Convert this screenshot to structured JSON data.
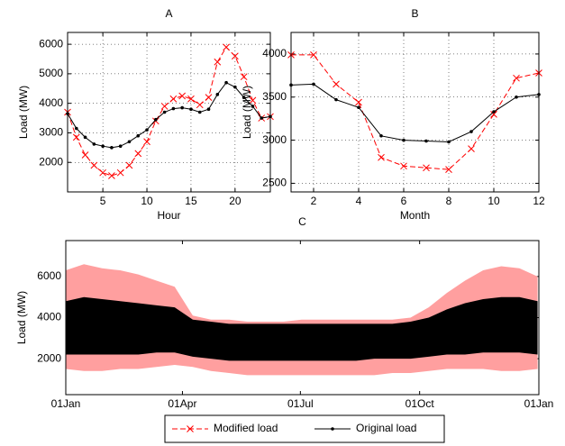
{
  "chart_data": [
    {
      "type": "line",
      "title": "A",
      "xlabel": "Hour",
      "ylabel": "Load (MW)",
      "x": [
        1,
        2,
        3,
        4,
        5,
        6,
        7,
        8,
        9,
        10,
        11,
        12,
        13,
        14,
        15,
        16,
        17,
        18,
        19,
        20,
        21,
        22,
        23,
        24
      ],
      "series": [
        {
          "name": "Modified load",
          "color": "#ff0000",
          "dash": true,
          "marker": "x",
          "values": [
            3700,
            2850,
            2250,
            1900,
            1650,
            1550,
            1650,
            1900,
            2300,
            2700,
            3400,
            3900,
            4150,
            4250,
            4150,
            3950,
            4200,
            5400,
            5900,
            5600,
            4900,
            4100,
            3500,
            3550
          ]
        },
        {
          "name": "Original load",
          "color": "#000000",
          "dash": false,
          "marker": "dot",
          "values": [
            3650,
            3150,
            2850,
            2620,
            2550,
            2500,
            2550,
            2700,
            2900,
            3100,
            3450,
            3700,
            3820,
            3850,
            3800,
            3700,
            3800,
            4300,
            4700,
            4550,
            4200,
            3900,
            3500,
            3550
          ]
        }
      ],
      "xlim": [
        1,
        24
      ],
      "xticks": [
        5,
        10,
        15,
        20
      ],
      "ylim": [
        1000,
        6400
      ],
      "yticks": [
        2000,
        3000,
        4000,
        5000,
        6000
      ],
      "grid": true
    },
    {
      "type": "line",
      "title": "B",
      "xlabel": "Month",
      "ylabel": "Load (MW)",
      "x": [
        1,
        2,
        3,
        4,
        5,
        6,
        7,
        8,
        9,
        10,
        11,
        12
      ],
      "series": [
        {
          "color": "#ff0000",
          "dash": true,
          "marker": "x",
          "values": [
            3990,
            3990,
            3650,
            3440,
            2800,
            2700,
            2680,
            2660,
            2900,
            3300,
            3720,
            3780
          ]
        },
        {
          "color": "#000000",
          "dash": false,
          "marker": "dot",
          "values": [
            3640,
            3650,
            3470,
            3380,
            3050,
            3000,
            2990,
            2980,
            3100,
            3330,
            3500,
            3530
          ]
        }
      ],
      "xlim": [
        1,
        12
      ],
      "xticks": [
        2,
        4,
        6,
        8,
        10,
        12
      ],
      "ylim": [
        2400,
        4250
      ],
      "yticks": [
        2500,
        3000,
        3500,
        4000
      ],
      "grid": true
    },
    {
      "type": "area",
      "title": "C",
      "ylabel": "Load (MW)",
      "x": [
        0,
        14,
        28,
        42,
        56,
        70,
        84,
        98,
        112,
        126,
        140,
        154,
        168,
        182,
        196,
        210,
        224,
        238,
        252,
        266,
        280,
        294,
        308,
        322,
        336,
        350,
        364
      ],
      "series": [
        {
          "color": "#ff9f9f",
          "upper": [
            6300,
            6600,
            6400,
            6300,
            6100,
            5800,
            5500,
            4100,
            3900,
            3900,
            3800,
            3800,
            3800,
            3900,
            3900,
            3900,
            3900,
            3900,
            3900,
            4000,
            4500,
            5200,
            5800,
            6300,
            6500,
            6400,
            6000
          ],
          "lower": [
            1500,
            1400,
            1400,
            1500,
            1500,
            1600,
            1700,
            1600,
            1400,
            1300,
            1200,
            1200,
            1200,
            1200,
            1200,
            1200,
            1200,
            1200,
            1300,
            1300,
            1400,
            1500,
            1500,
            1500,
            1400,
            1400,
            1500
          ]
        },
        {
          "color": "#000000",
          "upper": [
            4800,
            5000,
            4900,
            4800,
            4700,
            4600,
            4500,
            3900,
            3800,
            3700,
            3700,
            3700,
            3700,
            3700,
            3700,
            3700,
            3700,
            3700,
            3700,
            3800,
            4000,
            4400,
            4700,
            4900,
            5000,
            5000,
            4800
          ],
          "lower": [
            2200,
            2200,
            2200,
            2200,
            2200,
            2300,
            2300,
            2100,
            2000,
            1900,
            1900,
            1900,
            1900,
            1900,
            1900,
            1900,
            1900,
            2000,
            2000,
            2000,
            2100,
            2200,
            2200,
            2300,
            2300,
            2300,
            2200
          ]
        }
      ],
      "xlim": [
        0,
        365
      ],
      "xticks": [
        {
          "value": 0,
          "label": "01Jan"
        },
        {
          "value": 90,
          "label": "01Apr"
        },
        {
          "value": 181,
          "label": "01Jul"
        },
        {
          "value": 273,
          "label": "01Oct"
        },
        {
          "value": 365,
          "label": "01Jan"
        }
      ],
      "ylim": [
        250,
        7750
      ],
      "yticks": [
        2000,
        4000,
        6000
      ],
      "grid": false
    }
  ]
}
